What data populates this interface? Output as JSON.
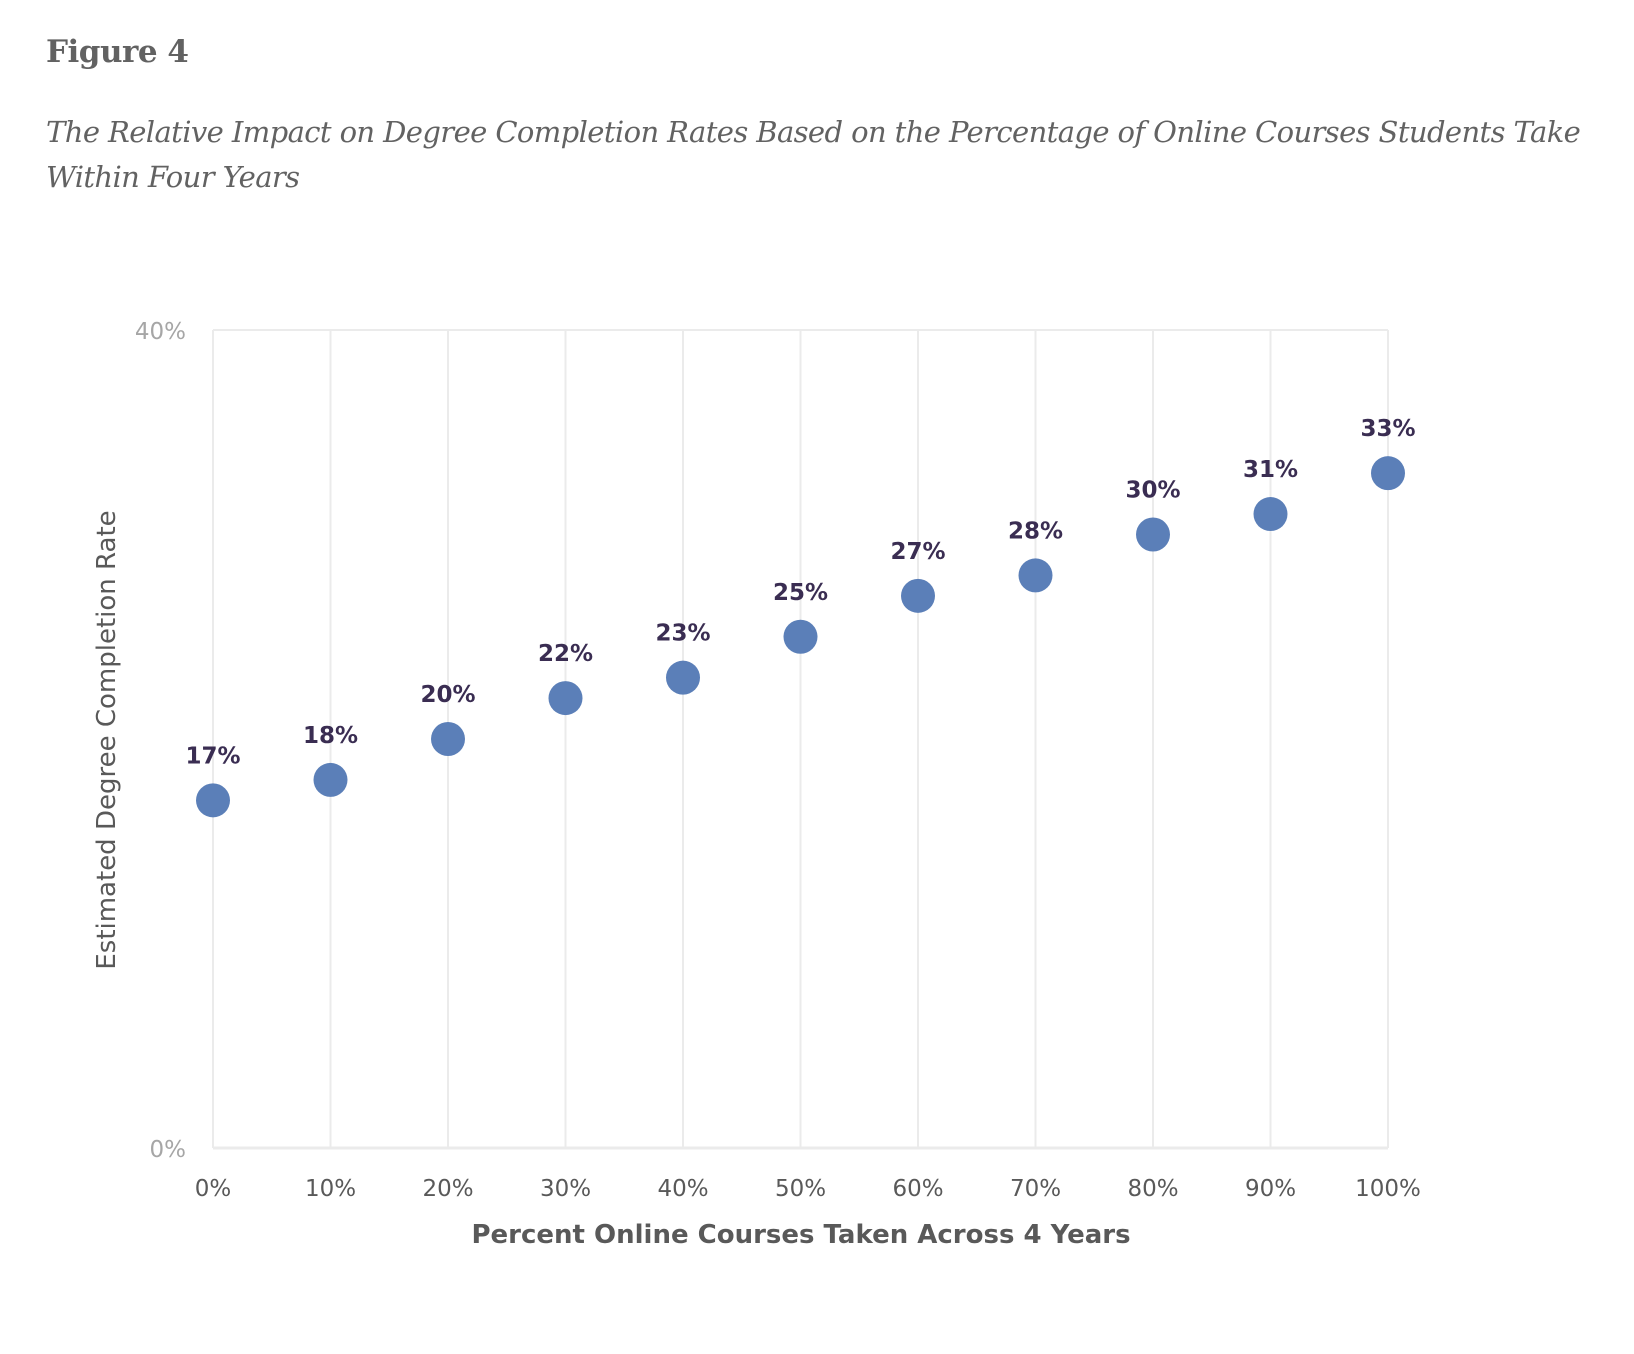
{
  "figure_label": "Figure 4",
  "figure_title": "The Relative Impact on Degree Completion Rates Based on the Percentage of Online Courses Students Take Within Four Years",
  "chart_data": {
    "type": "scatter",
    "title": "The Relative Impact on Degree Completion Rates Based on the Percentage of Online Courses Students Take Within Four Years",
    "xlabel": "Percent Online Courses Taken Across 4 Years",
    "ylabel": "Estimated Degree Completion Rate",
    "x": [
      0,
      10,
      20,
      30,
      40,
      50,
      60,
      70,
      80,
      90,
      100
    ],
    "y": [
      17,
      18,
      20,
      22,
      23,
      25,
      27,
      28,
      30,
      31,
      33
    ],
    "data_labels": [
      "17%",
      "18%",
      "20%",
      "22%",
      "23%",
      "25%",
      "27%",
      "28%",
      "30%",
      "31%",
      "33%"
    ],
    "xlim": [
      0,
      100
    ],
    "ylim": [
      0,
      40
    ],
    "x_tick_values": [
      0,
      10,
      20,
      30,
      40,
      50,
      60,
      70,
      80,
      90,
      100
    ],
    "x_tick_labels": [
      "0%",
      "10%",
      "20%",
      "30%",
      "40%",
      "50%",
      "60%",
      "70%",
      "80%",
      "90%",
      "100%"
    ],
    "y_tick_values": [
      0,
      40
    ],
    "y_tick_labels": [
      "0%",
      "40%"
    ],
    "grid": "vertical",
    "legend": "none",
    "colors": {
      "marker": "#5b7fb8",
      "data_label": "#3a2d52",
      "grid": "#ebebeb"
    }
  }
}
